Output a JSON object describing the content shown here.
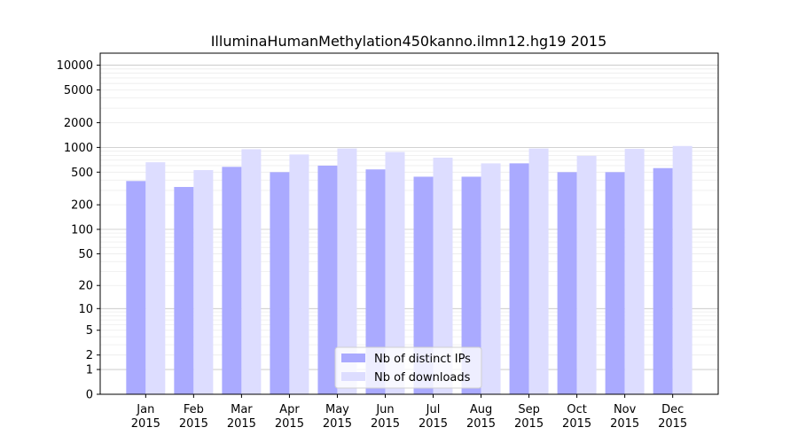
{
  "chart_data": {
    "type": "bar",
    "title": "IlluminaHumanMethylation450kanno.ilmn12.hg19 2015",
    "xlabel": "",
    "ylabel": "",
    "yscale": "symlog",
    "ylim": [
      0,
      14000
    ],
    "yticks": [
      0,
      1,
      2,
      5,
      10,
      20,
      50,
      100,
      200,
      500,
      1000,
      2000,
      5000,
      10000
    ],
    "grid": "horizontal",
    "legend_position": "bottom-center",
    "categories": [
      [
        "Jan",
        "2015"
      ],
      [
        "Feb",
        "2015"
      ],
      [
        "Mar",
        "2015"
      ],
      [
        "Apr",
        "2015"
      ],
      [
        "May",
        "2015"
      ],
      [
        "Jun",
        "2015"
      ],
      [
        "Jul",
        "2015"
      ],
      [
        "Aug",
        "2015"
      ],
      [
        "Sep",
        "2015"
      ],
      [
        "Oct",
        "2015"
      ],
      [
        "Nov",
        "2015"
      ],
      [
        "Dec",
        "2015"
      ]
    ],
    "series": [
      {
        "name": "Nb of distinct IPs",
        "color": "#aaaaff",
        "values": [
          390,
          330,
          580,
          500,
          600,
          540,
          440,
          440,
          640,
          500,
          500,
          560
        ]
      },
      {
        "name": "Nb of downloads",
        "color": "#ddddff",
        "values": [
          660,
          530,
          950,
          820,
          970,
          880,
          750,
          640,
          970,
          790,
          960,
          1040
        ]
      }
    ]
  }
}
